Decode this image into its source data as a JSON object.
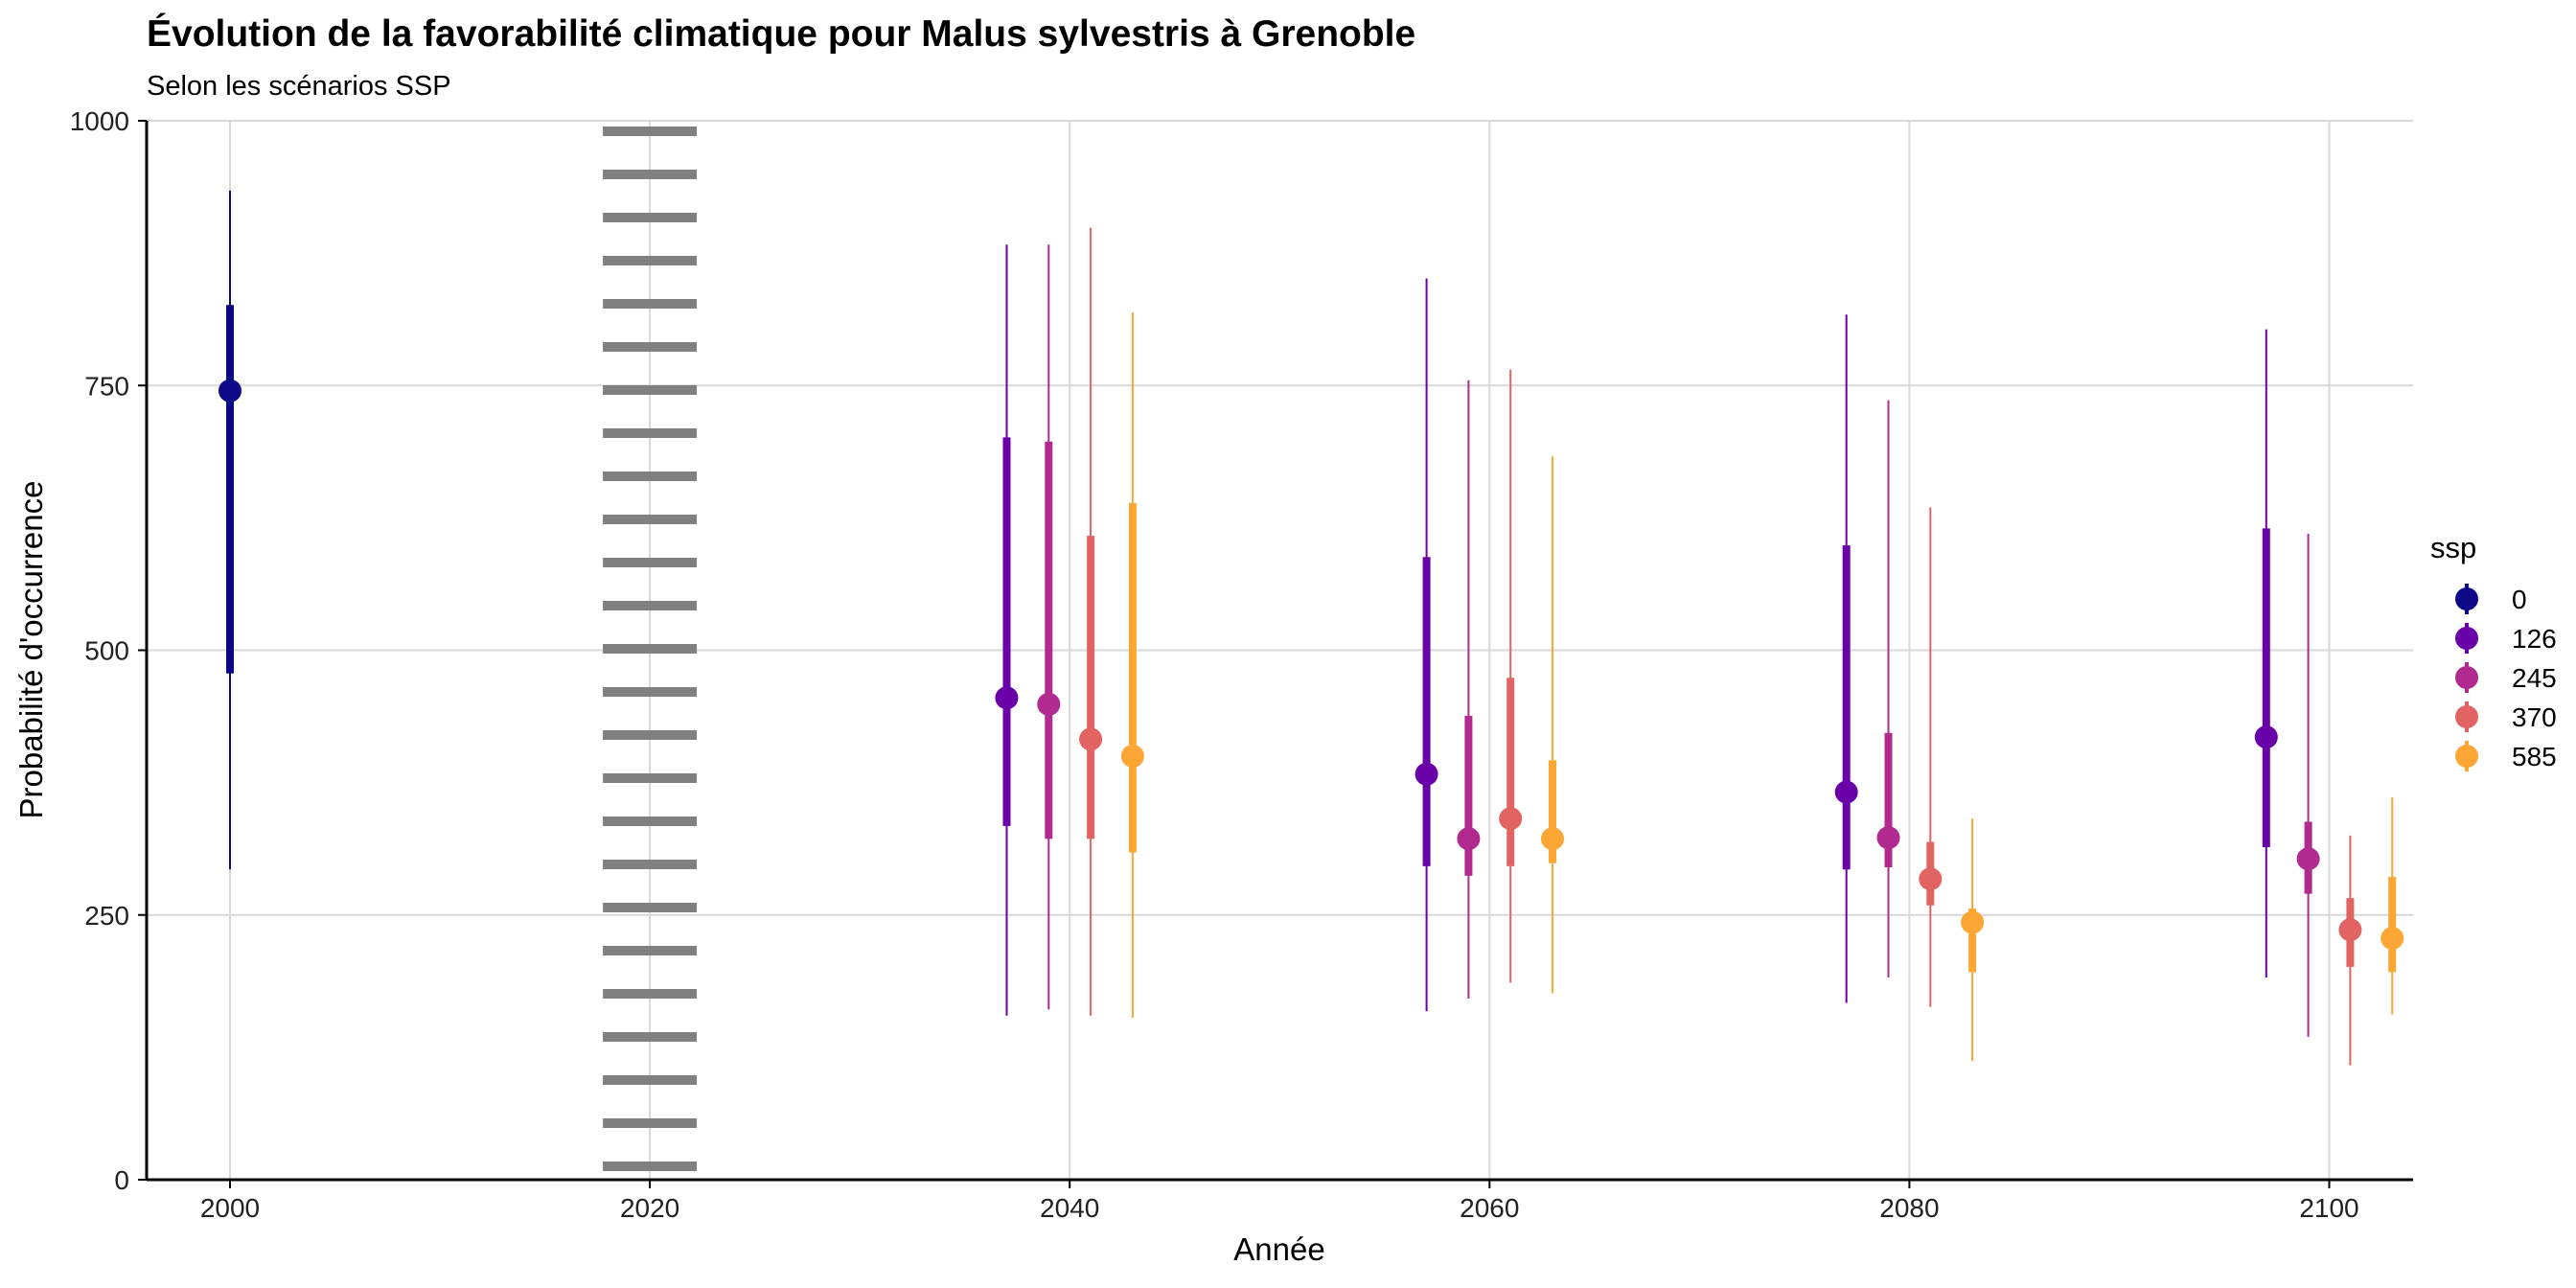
{
  "chart_data": {
    "type": "pointrange",
    "title": "Évolution de la favorabilité climatique pour Malus sylvestris à Grenoble",
    "subtitle": "Selon les scénarios SSP",
    "xlabel": "Année",
    "ylabel": "Probabilité d'occurrence",
    "xlim": [
      1996,
      2104
    ],
    "ylim": [
      0,
      1000
    ],
    "x_ticks": [
      2000,
      2020,
      2040,
      2060,
      2080,
      2100
    ],
    "y_ticks": [
      0,
      250,
      500,
      750,
      1000
    ],
    "grid": true,
    "vline": {
      "x": 2020,
      "style": "dotted",
      "color": "#808080"
    },
    "legend": {
      "title": "ssp",
      "placement": "right"
    },
    "series": [
      {
        "name": "0",
        "color": "#0D0887",
        "points": [
          {
            "x": 2000,
            "y": 745,
            "inner": [
              478,
              826
            ],
            "outer": [
              293,
              934
            ]
          }
        ]
      },
      {
        "name": "126",
        "color": "#6A00A8",
        "points": [
          {
            "x": 2037,
            "y": 455,
            "inner": [
              334,
              701
            ],
            "outer": [
              155,
              883
            ]
          },
          {
            "x": 2057,
            "y": 383,
            "inner": [
              296,
              588
            ],
            "outer": [
              159,
              851
            ]
          },
          {
            "x": 2077,
            "y": 366,
            "inner": [
              293,
              599
            ],
            "outer": [
              167,
              817
            ]
          },
          {
            "x": 2097,
            "y": 418,
            "inner": [
              314,
              615
            ],
            "outer": [
              191,
              803
            ]
          }
        ]
      },
      {
        "name": "245",
        "color": "#B12A90",
        "points": [
          {
            "x": 2039,
            "y": 449,
            "inner": [
              322,
              697
            ],
            "outer": [
              161,
              883
            ]
          },
          {
            "x": 2059,
            "y": 322,
            "inner": [
              287,
              438
            ],
            "outer": [
              171,
              755
            ]
          },
          {
            "x": 2079,
            "y": 323,
            "inner": [
              295,
              422
            ],
            "outer": [
              191,
              736
            ]
          },
          {
            "x": 2099,
            "y": 303,
            "inner": [
              270,
              338
            ],
            "outer": [
              135,
              610
            ]
          }
        ]
      },
      {
        "name": "370",
        "color": "#E16462",
        "points": [
          {
            "x": 2041,
            "y": 416,
            "inner": [
              322,
              608
            ],
            "outer": [
              155,
              899
            ]
          },
          {
            "x": 2061,
            "y": 341,
            "inner": [
              296,
              474
            ],
            "outer": [
              186,
              765
            ]
          },
          {
            "x": 2081,
            "y": 284,
            "inner": [
              259,
              319
            ],
            "outer": [
              163,
              635
            ]
          },
          {
            "x": 2101,
            "y": 236,
            "inner": [
              201,
              266
            ],
            "outer": [
              108,
              325
            ]
          }
        ]
      },
      {
        "name": "585",
        "color": "#FCA636",
        "points": [
          {
            "x": 2043,
            "y": 400,
            "inner": [
              309,
              639
            ],
            "outer": [
              153,
              819
            ]
          },
          {
            "x": 2063,
            "y": 322,
            "inner": [
              299,
              396
            ],
            "outer": [
              176,
              683
            ]
          },
          {
            "x": 2083,
            "y": 243,
            "inner": [
              196,
              256
            ],
            "outer": [
              112,
              341
            ]
          },
          {
            "x": 2103,
            "y": 228,
            "inner": [
              196,
              286
            ],
            "outer": [
              156,
              361
            ]
          }
        ]
      }
    ]
  }
}
